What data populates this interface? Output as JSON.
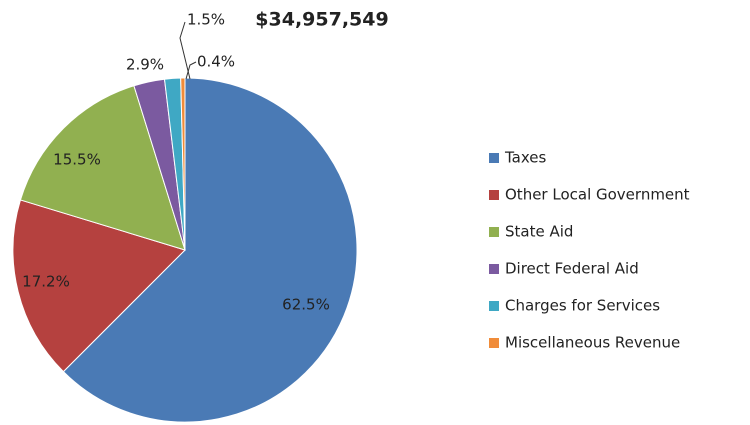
{
  "chart_data": {
    "type": "pie",
    "title": "$34,957,549",
    "categories": [
      "Taxes",
      "Other Local Government",
      "State Aid",
      "Direct Federal Aid",
      "Charges for Services",
      "Miscellaneous Revenue"
    ],
    "values": [
      62.5,
      17.2,
      15.5,
      2.9,
      1.5,
      0.4
    ],
    "value_labels": [
      "62.5%",
      "17.2%",
      "15.5%",
      "2.9%",
      "1.5%",
      "0.4%"
    ],
    "colors": [
      "#4a7ab5",
      "#b5413f",
      "#91b050",
      "#7b5aa0",
      "#3fa8c4",
      "#f08c3a"
    ],
    "legend": "right"
  }
}
